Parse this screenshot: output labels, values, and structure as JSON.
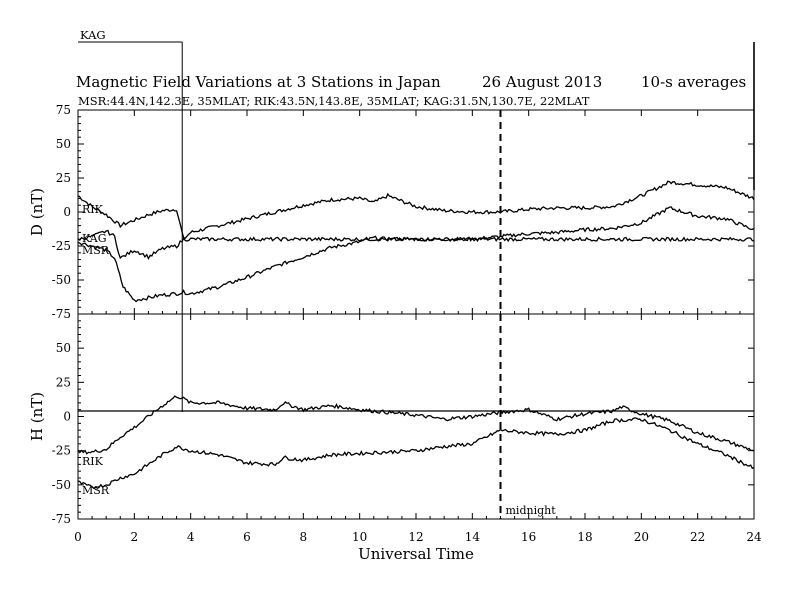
{
  "header": {
    "kag_label": "KAG",
    "title": "Magnetic Field Variations at 3 Stations in Japan",
    "date": "26 August  2013",
    "averaging": "10-s averages",
    "stations_line": "MSR:44.4N,142.3E, 35MLAT;  RIK:43.5N,143.8E, 35MLAT;  KAG:31.5N,130.7E, 22MLAT"
  },
  "chart_data": [
    {
      "type": "line",
      "panel": "D",
      "ylabel": "D (nT)",
      "ylim": [
        -75,
        75
      ],
      "yticks": [
        75,
        50,
        25,
        0,
        -25,
        -50,
        -75
      ],
      "xlim": [
        0,
        24
      ],
      "series": [
        {
          "name": "RIK",
          "x": [
            0,
            0.5,
            1,
            1.5,
            2,
            2.5,
            3,
            3.5,
            3.75,
            4,
            5,
            6,
            7,
            8,
            9,
            10,
            10.5,
            11,
            12,
            13,
            14,
            15,
            16,
            17,
            18,
            19,
            20,
            21,
            22,
            23,
            24
          ],
          "values": [
            12,
            4,
            -2,
            -10,
            -6,
            -2,
            1,
            2,
            -20,
            -15,
            -10,
            -5,
            0,
            5,
            9,
            10,
            7,
            12,
            4,
            1,
            0,
            0,
            2,
            3,
            3,
            4,
            12,
            22,
            20,
            18,
            10
          ]
        },
        {
          "name": "MSR",
          "x": [
            0,
            0.5,
            1,
            1.3,
            1.6,
            2,
            2.5,
            3,
            3.5,
            3.75,
            4,
            5,
            6,
            7,
            8,
            9,
            10,
            10.5,
            11,
            12,
            13,
            14,
            15,
            16,
            17,
            18,
            19,
            20,
            21,
            22,
            23,
            24
          ],
          "values": [
            -22,
            -25,
            -28,
            -34,
            -55,
            -65,
            -63,
            -61,
            -60,
            -59,
            -60,
            -55,
            -48,
            -40,
            -33,
            -26,
            -22,
            -19,
            -20,
            -20,
            -20,
            -20,
            -18,
            -16,
            -15,
            -13,
            -12,
            -8,
            3,
            -3,
            -5,
            -13
          ]
        },
        {
          "name": "KAG",
          "x": [
            0,
            0.5,
            1,
            1.3,
            1.5,
            2,
            2.5,
            3,
            3.5,
            3.75,
            4,
            6,
            8,
            10,
            12,
            14,
            16,
            18,
            20,
            22,
            24
          ],
          "values": [
            -20,
            -18,
            -14,
            -18,
            -34,
            -28,
            -33,
            -27,
            -25,
            -20,
            -20,
            -20,
            -20,
            -20,
            -20,
            -20,
            -20,
            -20,
            -20,
            -20,
            -20
          ]
        }
      ],
      "line_labels": [
        "RIK",
        "KAG",
        "MSR"
      ]
    },
    {
      "type": "line",
      "panel": "H",
      "ylabel": "H (nT)",
      "ylim": [
        -75,
        75
      ],
      "yticks": [
        75,
        50,
        25,
        0,
        -25,
        -50,
        -75
      ],
      "xlim": [
        0,
        24
      ],
      "series": [
        {
          "name": "RIK",
          "x": [
            0,
            0.5,
            1,
            1.5,
            2,
            2.5,
            3,
            3.5,
            3.75,
            4,
            5,
            6,
            7,
            7.3,
            8,
            9,
            10,
            11,
            12,
            13,
            14,
            15,
            16,
            17,
            18,
            19,
            19.3,
            20,
            21,
            22,
            23,
            24
          ],
          "values": [
            -26,
            -26,
            -24,
            -15,
            -8,
            0,
            8,
            15,
            13,
            10,
            10,
            6,
            5,
            10,
            5,
            8,
            5,
            3,
            1,
            -2,
            0,
            3,
            5,
            -2,
            2,
            4,
            7,
            2,
            -3,
            -12,
            -18,
            -25
          ]
        },
        {
          "name": "MSR",
          "x": [
            0,
            0.5,
            1,
            1.5,
            2,
            2.5,
            3,
            3.5,
            4,
            5,
            6,
            7,
            7.3,
            8,
            9,
            10,
            11,
            12,
            13,
            14,
            15,
            16,
            17,
            18,
            19,
            20,
            21,
            22,
            23,
            24
          ],
          "values": [
            -48,
            -52,
            -50,
            -45,
            -42,
            -35,
            -28,
            -22,
            -25,
            -28,
            -34,
            -35,
            -30,
            -32,
            -28,
            -27,
            -26,
            -25,
            -22,
            -20,
            -10,
            -12,
            -13,
            -10,
            -3,
            -2,
            -10,
            -20,
            -28,
            -38
          ]
        },
        {
          "name": "KAG",
          "x": [
            0,
            3.7,
            3.75,
            24
          ],
          "values": [
            4,
            4,
            4,
            4
          ]
        }
      ],
      "line_labels": [
        "RIK",
        "MSR"
      ]
    }
  ],
  "xaxis": {
    "ticks": [
      0,
      2,
      4,
      6,
      8,
      10,
      12,
      14,
      16,
      18,
      20,
      22,
      24
    ],
    "xlabel": "Universal Time"
  },
  "annotations": {
    "midnight_ut": 15,
    "midnight_label": "midnight"
  },
  "kag_offset_trace": {
    "top_x": 3.7,
    "right_x": 24
  },
  "colors": {
    "line": "#000000",
    "background": "#ffffff"
  }
}
